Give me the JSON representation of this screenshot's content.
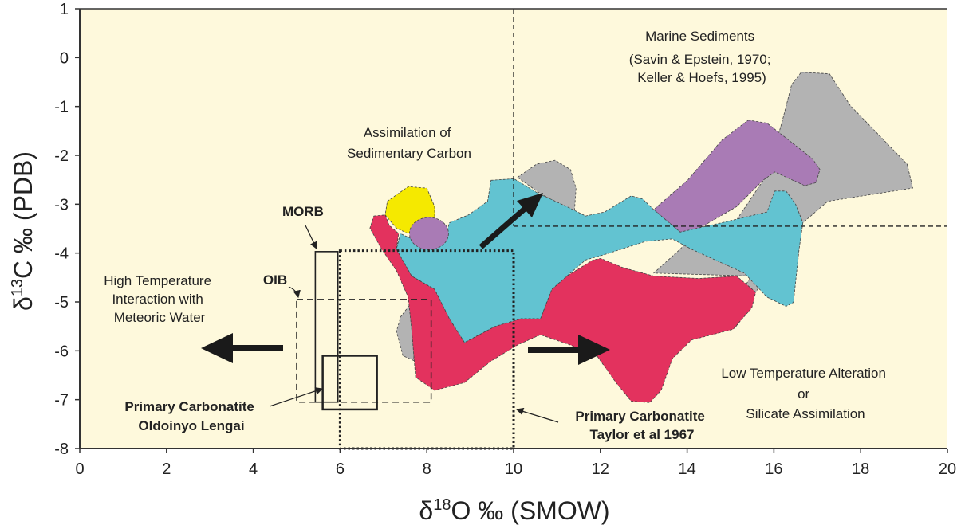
{
  "chart_data": {
    "type": "scatter",
    "title": "",
    "xlabel": {
      "delta": "δ",
      "sup": "18",
      "rest": "O ‰ (SMOW)"
    },
    "ylabel": {
      "delta": "δ",
      "sup": "13",
      "rest": "C ‰ (PDB)"
    },
    "xlim": [
      0,
      20
    ],
    "ylim": [
      -8,
      1
    ],
    "xticks": [
      "0",
      "2",
      "4",
      "6",
      "8",
      "10",
      "12",
      "14",
      "16",
      "18",
      "20"
    ],
    "yticks": [
      "1",
      "0",
      "-1",
      "-2",
      "-3",
      "-4",
      "-5",
      "-6",
      "-7",
      "-8"
    ],
    "colors": {
      "background": "#fef9dc",
      "gray": "#b3b3b3",
      "purple": "#a97bb5",
      "cyan": "#62c3d1",
      "red": "#e3325e",
      "yellow": "#f5e900"
    },
    "boxes": [
      {
        "name": "MORB",
        "style": "solid",
        "x": [
          5.43,
          5.95
        ],
        "y": [
          -7.05,
          -3.97
        ]
      },
      {
        "name": "OIB",
        "style": "dashed",
        "x": [
          5.0,
          8.1
        ],
        "y": [
          -7.05,
          -4.95
        ]
      },
      {
        "name": "Primary Carbonatite Oldoinyo Lengai",
        "style": "solid-thick",
        "x": [
          5.6,
          6.85
        ],
        "y": [
          -7.2,
          -6.1
        ]
      },
      {
        "name": "Primary Carbonatite Taylor et al 1967",
        "style": "dotted",
        "x": [
          6.0,
          10.0
        ],
        "y": [
          -8.0,
          -3.95
        ]
      }
    ],
    "reference_lines": {
      "vertical_x": 10,
      "horizontal_y": -3.45
    },
    "fields": [
      {
        "name": "gray-large",
        "color": "gray",
        "points": [
          [
            16.63,
            -0.3
          ],
          [
            17.28,
            -0.33
          ],
          [
            17.76,
            -0.98
          ],
          [
            19.07,
            -2.18
          ],
          [
            19.2,
            -2.67
          ],
          [
            17.24,
            -2.94
          ],
          [
            16.67,
            -3.38
          ],
          [
            15.58,
            -4.8
          ],
          [
            15.14,
            -5.5
          ],
          [
            14.71,
            -5.45
          ],
          [
            15.49,
            -4.47
          ],
          [
            13.23,
            -4.41
          ],
          [
            13.84,
            -3.92
          ],
          [
            14.27,
            -3.49
          ],
          [
            15.14,
            -3.32
          ],
          [
            15.84,
            -2.4
          ],
          [
            16.19,
            -1.31
          ],
          [
            16.41,
            -0.55
          ]
        ]
      },
      {
        "name": "gray-small",
        "color": "gray",
        "points": [
          [
            10.09,
            -2.45
          ],
          [
            10.53,
            -2.18
          ],
          [
            10.96,
            -2.1
          ],
          [
            11.31,
            -2.29
          ],
          [
            11.44,
            -2.67
          ],
          [
            11.4,
            -3.16
          ],
          [
            10.61,
            -2.78
          ]
        ]
      },
      {
        "name": "gray-left",
        "color": "gray",
        "points": [
          [
            7.7,
            -4.95
          ],
          [
            7.4,
            -5.3
          ],
          [
            7.3,
            -5.6
          ],
          [
            7.45,
            -6.1
          ],
          [
            7.7,
            -6.2
          ]
        ]
      },
      {
        "name": "purple-large",
        "color": "purple",
        "points": [
          [
            15.41,
            -1.28
          ],
          [
            15.84,
            -1.34
          ],
          [
            16.89,
            -2.07
          ],
          [
            17.06,
            -2.29
          ],
          [
            16.97,
            -2.56
          ],
          [
            16.71,
            -2.62
          ],
          [
            16.02,
            -2.34
          ],
          [
            15.75,
            -2.51
          ],
          [
            15.14,
            -3.05
          ],
          [
            14.19,
            -3.54
          ],
          [
            13.84,
            -3.57
          ],
          [
            13.23,
            -3.11
          ],
          [
            14.01,
            -2.51
          ],
          [
            14.8,
            -1.69
          ]
        ]
      },
      {
        "name": "red",
        "color": "red",
        "points": [
          [
            6.78,
            -3.24
          ],
          [
            7.04,
            -3.22
          ],
          [
            7.13,
            -3.43
          ],
          [
            7.35,
            -3.6
          ],
          [
            7.3,
            -3.92
          ],
          [
            7.65,
            -4.47
          ],
          [
            8.18,
            -4.74
          ],
          [
            8.52,
            -5.34
          ],
          [
            8.87,
            -5.83
          ],
          [
            9.57,
            -5.5
          ],
          [
            10.18,
            -5.34
          ],
          [
            10.62,
            -5.34
          ],
          [
            10.88,
            -4.74
          ],
          [
            11.23,
            -4.47
          ],
          [
            11.83,
            -4.14
          ],
          [
            12.01,
            -4.11
          ],
          [
            12.53,
            -4.3
          ],
          [
            13.23,
            -4.47
          ],
          [
            14.27,
            -4.52
          ],
          [
            15.14,
            -4.47
          ],
          [
            15.58,
            -4.8
          ],
          [
            15.49,
            -5.12
          ],
          [
            15.06,
            -5.56
          ],
          [
            14.1,
            -5.78
          ],
          [
            13.66,
            -6.16
          ],
          [
            13.4,
            -6.81
          ],
          [
            13.14,
            -7.06
          ],
          [
            12.71,
            -7.03
          ],
          [
            12.36,
            -6.65
          ],
          [
            11.92,
            -6.1
          ],
          [
            11.31,
            -5.88
          ],
          [
            10.62,
            -5.67
          ],
          [
            10.09,
            -5.88
          ],
          [
            9.48,
            -6.21
          ],
          [
            8.87,
            -6.65
          ],
          [
            8.18,
            -6.81
          ],
          [
            7.74,
            -6.54
          ],
          [
            7.65,
            -5.56
          ],
          [
            7.57,
            -4.9
          ],
          [
            7.3,
            -4.36
          ],
          [
            6.96,
            -3.92
          ],
          [
            6.69,
            -3.49
          ]
        ]
      },
      {
        "name": "cyan",
        "color": "cyan",
        "points": [
          [
            9.48,
            -2.51
          ],
          [
            10.01,
            -2.48
          ],
          [
            10.57,
            -2.78
          ],
          [
            11.23,
            -3.05
          ],
          [
            11.66,
            -3.24
          ],
          [
            12.1,
            -3.16
          ],
          [
            12.71,
            -2.83
          ],
          [
            12.97,
            -2.89
          ],
          [
            13.23,
            -3.11
          ],
          [
            13.84,
            -3.57
          ],
          [
            14.8,
            -3.38
          ],
          [
            15.84,
            -3.16
          ],
          [
            16.02,
            -2.73
          ],
          [
            16.28,
            -2.73
          ],
          [
            16.5,
            -3.0
          ],
          [
            16.67,
            -3.38
          ],
          [
            16.58,
            -3.92
          ],
          [
            16.45,
            -5.01
          ],
          [
            16.28,
            -5.09
          ],
          [
            15.84,
            -4.9
          ],
          [
            15.32,
            -4.41
          ],
          [
            14.1,
            -3.92
          ],
          [
            13.66,
            -3.71
          ],
          [
            13.05,
            -3.76
          ],
          [
            12.1,
            -4.03
          ],
          [
            11.66,
            -4.14
          ],
          [
            11.23,
            -4.47
          ],
          [
            10.88,
            -4.74
          ],
          [
            10.62,
            -5.34
          ],
          [
            10.18,
            -5.34
          ],
          [
            9.57,
            -5.5
          ],
          [
            8.87,
            -5.83
          ],
          [
            8.52,
            -5.34
          ],
          [
            8.18,
            -4.74
          ],
          [
            7.65,
            -4.47
          ],
          [
            7.3,
            -3.92
          ],
          [
            7.39,
            -3.6
          ],
          [
            7.65,
            -3.71
          ],
          [
            8.0,
            -3.87
          ],
          [
            8.44,
            -3.65
          ],
          [
            8.52,
            -3.38
          ],
          [
            8.96,
            -3.22
          ],
          [
            9.4,
            -2.94
          ]
        ]
      },
      {
        "name": "yellow",
        "color": "yellow",
        "points": [
          [
            7.09,
            -2.94
          ],
          [
            7.57,
            -2.64
          ],
          [
            8.0,
            -2.67
          ],
          [
            8.18,
            -3.05
          ],
          [
            8.18,
            -3.32
          ],
          [
            7.57,
            -3.6
          ],
          [
            7.3,
            -3.49
          ],
          [
            7.04,
            -3.22
          ]
        ]
      }
    ],
    "ellipse_field": {
      "name": "purple-small",
      "color": "purple",
      "cx": 8.05,
      "cy": -3.6,
      "rx": 0.45,
      "ry": 0.33
    },
    "annotations": {
      "marine": [
        "Marine Sediments",
        "(Savin & Epstein, 1970;",
        "Keller & Hoefs, 1995)"
      ],
      "assimilation": [
        "Assimilation of",
        "Sedimentary Carbon"
      ],
      "high_temp": [
        "High Temperature",
        "Interaction with",
        "Meteoric Water"
      ],
      "low_temp": [
        "Low Temperature Alteration",
        "or",
        "Silicate Assimilation"
      ],
      "morb": "MORB",
      "oib": "OIB",
      "lengai": [
        "Primary Carbonatite",
        "Oldoinyo Lengai"
      ],
      "taylor": [
        "Primary Carbonatite",
        "Taylor et al 1967"
      ]
    }
  }
}
